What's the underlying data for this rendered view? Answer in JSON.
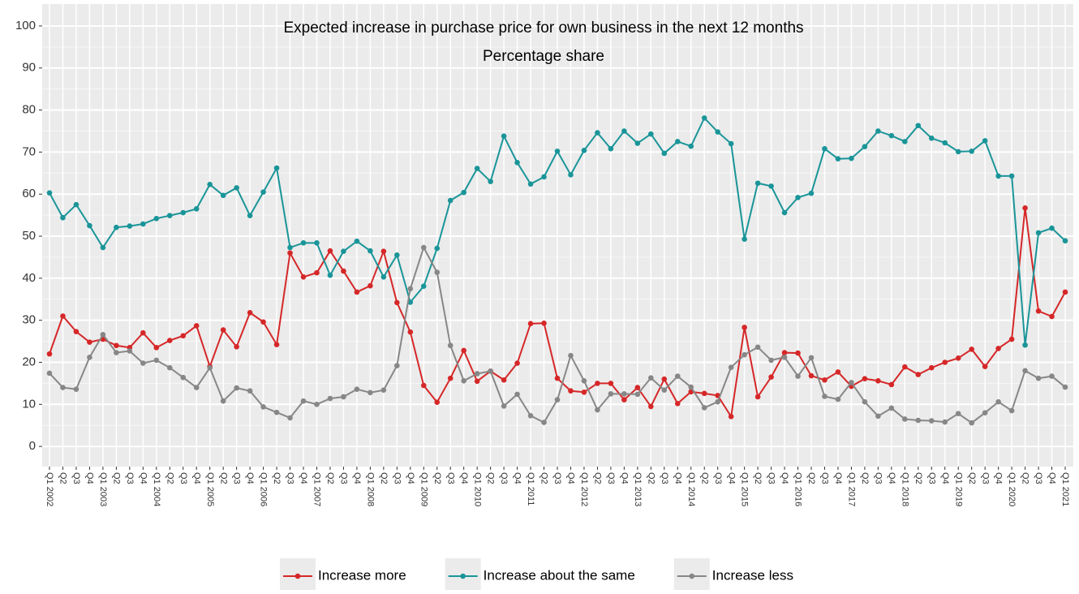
{
  "chart_data": {
    "type": "line",
    "title": "Expected increase in purchase price for own business in the next 12 months",
    "subtitle": "Percentage share",
    "categories": [
      "Q1 2002",
      "Q2",
      "Q3",
      "Q4",
      "Q1 2003",
      "Q2",
      "Q3",
      "Q4",
      "Q1 2004",
      "Q2",
      "Q3",
      "Q4",
      "Q1 2005",
      "Q2",
      "Q3",
      "Q4",
      "Q1 2006",
      "Q2",
      "Q3",
      "Q4",
      "Q1 2007",
      "Q2",
      "Q3",
      "Q4",
      "Q1 2008",
      "Q2",
      "Q3",
      "Q4",
      "Q1 2009",
      "Q2",
      "Q3",
      "Q4",
      "Q1 2010",
      "Q2",
      "Q3",
      "Q4",
      "Q1 2011",
      "Q2",
      "Q3",
      "Q4",
      "Q1 2012",
      "Q2",
      "Q3",
      "Q4",
      "Q1 2013",
      "Q2",
      "Q3",
      "Q4",
      "Q1 2014",
      "Q2",
      "Q3",
      "Q4",
      "Q1 2015",
      "Q2",
      "Q3",
      "Q4",
      "Q1 2016",
      "Q2",
      "Q3",
      "Q4",
      "Q1 2017",
      "Q2",
      "Q3",
      "Q4",
      "Q1 2018",
      "Q2",
      "Q3",
      "Q4",
      "Q1 2019",
      "Q2",
      "Q3",
      "Q4",
      "Q1 2020",
      "Q2",
      "Q3",
      "Q4",
      "Q1 2021"
    ],
    "series": [
      {
        "name": "Increase more",
        "color": "#d62728",
        "values": [
          22,
          31,
          27.3,
          24.8,
          25.5,
          24,
          23.5,
          27,
          23.5,
          25.2,
          26.3,
          28.7,
          19,
          27.7,
          23.7,
          31.8,
          29.6,
          24.2,
          46,
          40.3,
          41.3,
          46.5,
          41.7,
          36.7,
          38.2,
          46.4,
          34.2,
          27.2,
          14.5,
          10.5,
          16.2,
          22.8,
          15.5,
          17.9,
          15.8,
          19.8,
          29.2,
          29.3,
          16.2,
          13.2,
          12.9,
          15,
          15,
          11.1,
          14,
          9.5,
          16,
          10.2,
          13,
          12.6,
          12.1,
          7.1,
          28.3,
          11.8,
          16.5,
          22.3,
          22.2,
          16.8,
          15.8,
          17.7,
          14.3,
          16.1,
          15.6,
          14.7,
          18.9,
          17.1,
          18.7,
          20,
          21,
          23.1,
          19,
          23.3,
          25.5,
          56.7,
          32.2,
          30.9,
          36.7
        ]
      },
      {
        "name": "Increase about the same",
        "color": "#1a9599",
        "values": [
          60.3,
          54.4,
          57.5,
          52.5,
          47.3,
          52.1,
          52.4,
          52.9,
          54.2,
          54.9,
          55.6,
          56.5,
          62.3,
          59.7,
          61.5,
          54.9,
          60.5,
          66.2,
          47.3,
          48.4,
          48.4,
          40.7,
          46.4,
          48.8,
          46.5,
          40.3,
          45.5,
          34.3,
          38.1,
          47.1,
          58.5,
          60.4,
          66.1,
          63,
          73.8,
          67.5,
          62.4,
          64.1,
          70.2,
          64.6,
          70.4,
          74.6,
          70.8,
          75,
          72.1,
          74.3,
          69.7,
          72.5,
          71.4,
          78.1,
          74.8,
          72,
          49.3,
          62.6,
          61.9,
          55.6,
          59.2,
          60.2,
          70.8,
          68.4,
          68.5,
          71.3,
          75,
          73.9,
          72.5,
          76.3,
          73.3,
          72.2,
          70.1,
          70.2,
          72.7,
          64.3,
          64.3,
          24.1,
          50.8,
          51.9,
          48.9
        ]
      },
      {
        "name": "Increase less",
        "color": "#878787",
        "values": [
          17.4,
          14,
          13.6,
          21.2,
          26.6,
          22.3,
          22.7,
          19.8,
          20.5,
          18.7,
          16.4,
          14,
          18.7,
          10.8,
          13.9,
          13.2,
          9.4,
          8.1,
          6.8,
          10.8,
          10,
          11.4,
          11.8,
          13.6,
          12.8,
          13.4,
          19.2,
          37.5,
          47.3,
          41.4,
          24,
          15.6,
          17.3,
          17.9,
          9.6,
          12.4,
          7.3,
          5.7,
          11.1,
          21.6,
          15.6,
          8.7,
          12.5,
          12.5,
          12.4,
          16.3,
          13.4,
          16.7,
          14.1,
          9.2,
          10.6,
          18.8,
          21.8,
          23.6,
          20.5,
          21.2,
          16.7,
          21.1,
          11.9,
          11.2,
          15.2,
          10.6,
          7.2,
          9.1,
          6.5,
          6.2,
          6.1,
          5.8,
          7.8,
          5.6,
          8,
          10.6,
          8.5,
          18,
          16.2,
          16.7,
          14.1
        ]
      }
    ],
    "ylim": [
      -4.8,
      105.2
    ],
    "yticks": [
      0,
      10,
      20,
      30,
      40,
      50,
      60,
      70,
      80,
      90,
      100
    ],
    "grid": true,
    "legend": "bottom"
  }
}
